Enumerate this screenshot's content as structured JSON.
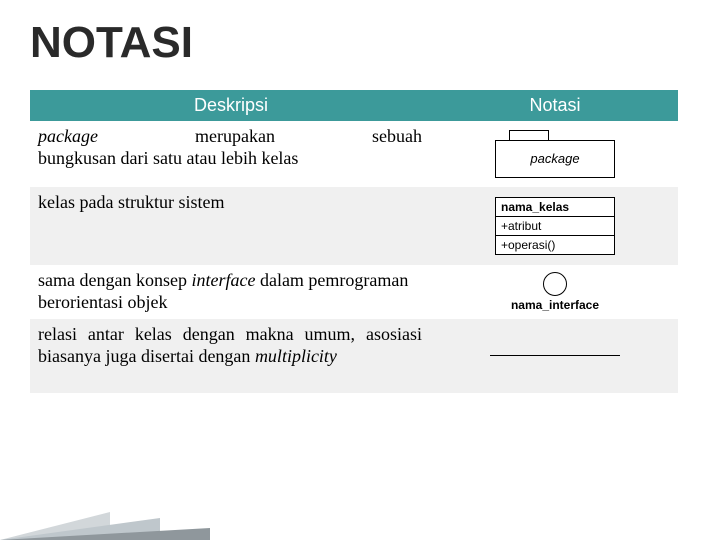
{
  "title": "NOTASI",
  "table": {
    "headers": {
      "left": "Deskripsi",
      "right": "Notasi"
    },
    "rows": [
      {
        "desc_line1": {
          "w1": "package",
          "w2": "merupakan",
          "w3": "sebuah"
        },
        "desc_line2": "bungkusan dari satu atau lebih kelas",
        "notation_label": "package"
      },
      {
        "desc": "kelas pada struktur sistem",
        "class_box": {
          "name": "nama_kelas",
          "attr": "+atribut",
          "op": "+operasi()"
        }
      },
      {
        "desc_a": "sama dengan konsep ",
        "desc_i": "interface",
        "desc_b": " dalam pemrograman berorientasi objek",
        "intf_label": "nama_interface"
      },
      {
        "desc_a": "relasi antar kelas dengan makna umum, asosiasi biasanya juga disertai dengan ",
        "desc_i": "multiplicity"
      }
    ]
  },
  "colors": {
    "header_bg": "#3c9a9a",
    "band_grey": "#f0f0f0",
    "text": "#000000"
  }
}
